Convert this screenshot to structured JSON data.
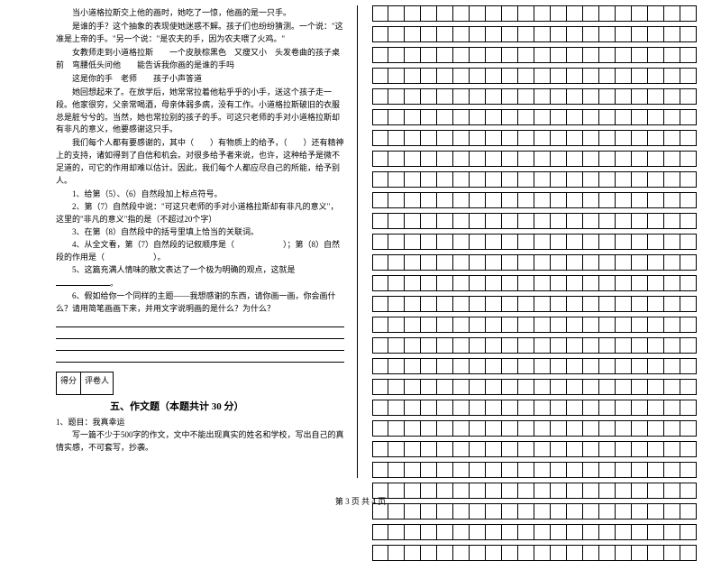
{
  "passage": {
    "p1": "当小道格拉斯交上他的画时，她吃了一惊，他画的是一只手。",
    "p2": "是谁的手？这个抽象的表现使她迷惑不解。孩子们也纷纷猜测。一个说：\"这准是上帝的手。\"另一个说：\"是农夫的手，因为农夫喂了火鸡。\"",
    "p3": "女教师走到小道格拉斯　　一个皮肤棕黑色　又瘦又小　头发卷曲的孩子桌前　弯腰低头问他　　能告诉我你画的是谁的手吗",
    "p4": "这是你的手　老师　　孩子小声答道",
    "p5": "她回想起来了。在放学后，她常常拉着他粘乎乎的小手，送这个孩子走一段。他家很穷，父亲常喝酒，母亲体弱多病，没有工作。小道格拉斯破旧的衣服总是脏兮兮的。当然，她也常拉别的孩子的手。可这只老师的手对小道格拉斯却有非凡的意义，他要感谢这只手。",
    "p6": "我们每个人都有要感谢的，其中（　　）有物质上的给予，（　　）还有精神上的支持，诸如得到了自信和机会。对很多给予者来说，也许，这种给予是微不足道的，可它的作用却难以估计。因此，我们每个人都应尽自己的所能，给予别人。"
  },
  "questions": {
    "q1": "1、给第（5）、（6）自然段加上标点符号。",
    "q2a": "2、第（7）自然段中说：\"可这只老师的手对小道格拉斯却有非凡的意义\"，这里的\"非凡的意义\"指的是（不超过20个字）",
    "q3": "3、在第（8）自然段中的括号里填上恰当的关联词。",
    "q4a": "4、从全文看，第（7）自然段的记叙顺序是（　　　　　　）；第（8）自然段的作用是（　　　　　　）。",
    "q5": "5、这篇充满人情味的散文表达了一个极为明确的观点，这就是",
    "q6": "6、假如给你一个同样的主题——我想感谢的东西，请你画一画，你会画什么？请用简笔画画下来，并用文字说明画的是什么？为什么？"
  },
  "scorebox": {
    "label1": "得分",
    "label2": "评卷人"
  },
  "section5": {
    "title": "五、作文题（本题共计 30 分）",
    "topic_label": "1、题目：我真幸运",
    "instruction": "写一篇不少于500字的作文，文中不能出现真实的姓名和学校，写出自己的真情实感，不可套写，抄袭。"
  },
  "grid": {
    "rows": 27,
    "cols": 20
  },
  "footer": "第 3 页 共 4 页"
}
